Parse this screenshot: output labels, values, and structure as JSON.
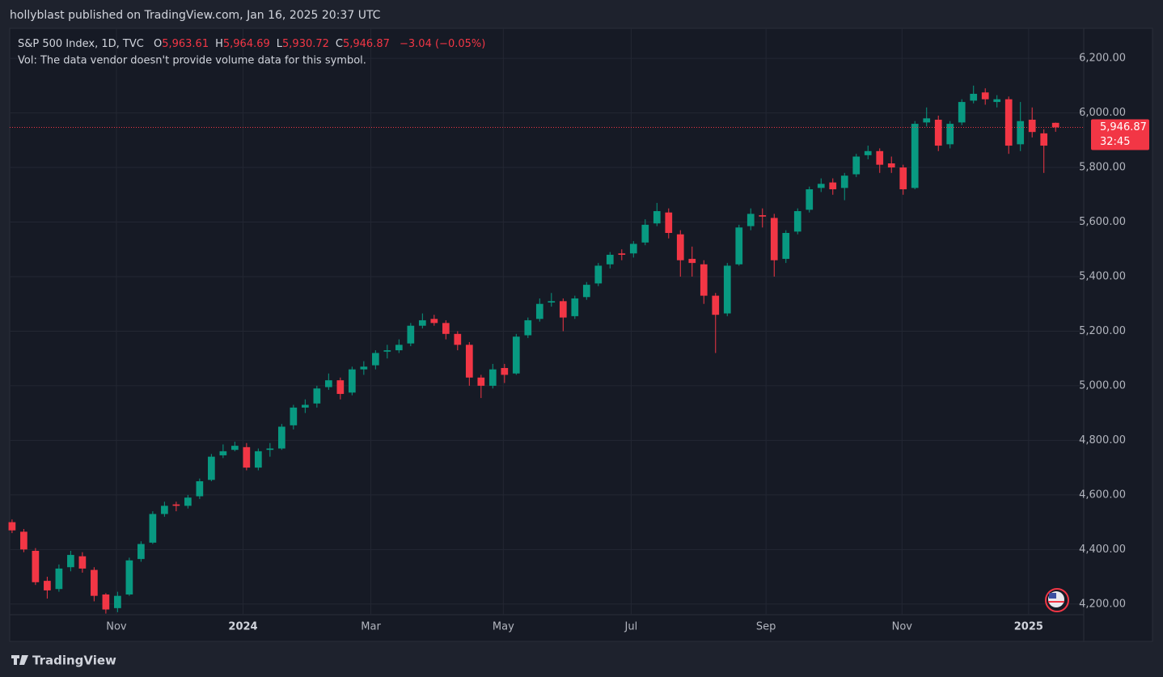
{
  "header": {
    "published": "hollyblast published on TradingView.com, Jan 16, 2025 20:37 UTC"
  },
  "footer": {
    "brand": "TradingView"
  },
  "chart_data": {
    "type": "candlestick",
    "symbol": "S&P 500 Index, 1D, TVC",
    "ohlc_legend": [
      {
        "key": "O",
        "value": "5,963.61"
      },
      {
        "key": "H",
        "value": "5,964.69"
      },
      {
        "key": "L",
        "value": "5,930.72"
      },
      {
        "key": "C",
        "value": "5,946.87"
      }
    ],
    "change": "−3.04 (−0.05%)",
    "volume_note": "Vol: The data vendor doesn't provide volume data for this symbol.",
    "last_price_label": "5,946.87",
    "countdown": "32:45",
    "up_color": "#089981",
    "down_color": "#f23645",
    "grid": true,
    "open": [
      4500,
      4465,
      4395,
      4285,
      4255,
      4335,
      4375,
      4325,
      4235,
      4185,
      4235,
      4365,
      4425,
      4530,
      4565,
      4560,
      4595,
      4655,
      4745,
      4765,
      4775,
      4700,
      4765,
      4770,
      4855,
      4920,
      4935,
      4995,
      5020,
      4975,
      5060,
      5075,
      5125,
      5130,
      5155,
      5220,
      5245,
      5230,
      5190,
      5150,
      5030,
      5000,
      5065,
      5045,
      5185,
      5245,
      5305,
      5310,
      5255,
      5325,
      5375,
      5445,
      5485,
      5485,
      5525,
      5595,
      5635,
      5555,
      5465,
      5445,
      5330,
      5265,
      5445,
      5585,
      5625,
      5615,
      5465,
      5565,
      5645,
      5725,
      5745,
      5725,
      5775,
      5845,
      5860,
      5815,
      5800,
      5725,
      5965,
      5975,
      5885,
      5965,
      6045,
      6075,
      6040,
      6050,
      5885,
      5975,
      5925,
      5963.61
    ],
    "high": [
      4510,
      4475,
      4405,
      4300,
      4345,
      4395,
      4390,
      4335,
      4240,
      4245,
      4370,
      4430,
      4540,
      4575,
      4575,
      4600,
      4660,
      4750,
      4785,
      4795,
      4790,
      4770,
      4790,
      4860,
      4930,
      4950,
      5000,
      5045,
      5030,
      5070,
      5090,
      5130,
      5150,
      5170,
      5230,
      5265,
      5260,
      5240,
      5200,
      5160,
      5040,
      5080,
      5080,
      5190,
      5250,
      5320,
      5340,
      5320,
      5330,
      5380,
      5450,
      5490,
      5500,
      5530,
      5610,
      5670,
      5650,
      5570,
      5510,
      5460,
      5340,
      5450,
      5590,
      5650,
      5650,
      5630,
      5570,
      5650,
      5730,
      5760,
      5760,
      5780,
      5850,
      5880,
      5870,
      5840,
      5810,
      5970,
      6020,
      5990,
      5970,
      6050,
      6100,
      6090,
      6065,
      6060,
      6040,
      6020,
      5940,
      5964.69
    ],
    "low": [
      4460,
      4390,
      4270,
      4220,
      4245,
      4320,
      4315,
      4210,
      4165,
      4170,
      4230,
      4355,
      4420,
      4520,
      4540,
      4550,
      4585,
      4650,
      4735,
      4760,
      4690,
      4690,
      4740,
      4765,
      4840,
      4900,
      4920,
      4985,
      4950,
      4965,
      5040,
      5060,
      5100,
      5120,
      5145,
      5210,
      5220,
      5170,
      5130,
      5000,
      4955,
      4990,
      5010,
      5040,
      5175,
      5235,
      5290,
      5200,
      5245,
      5315,
      5365,
      5430,
      5460,
      5470,
      5515,
      5585,
      5540,
      5400,
      5400,
      5300,
      5120,
      5255,
      5440,
      5570,
      5580,
      5400,
      5450,
      5555,
      5635,
      5710,
      5700,
      5680,
      5765,
      5830,
      5780,
      5780,
      5700,
      5720,
      5950,
      5860,
      5870,
      5955,
      6035,
      6030,
      6020,
      5850,
      5860,
      5910,
      5780,
      5930.72
    ],
    "close": [
      4470,
      4400,
      4280,
      4250,
      4330,
      4380,
      4330,
      4230,
      4180,
      4230,
      4360,
      4420,
      4530,
      4560,
      4560,
      4590,
      4650,
      4740,
      4760,
      4780,
      4700,
      4760,
      4770,
      4850,
      4920,
      4930,
      4990,
      5020,
      4970,
      5060,
      5070,
      5120,
      5130,
      5150,
      5220,
      5240,
      5230,
      5190,
      5150,
      5030,
      5000,
      5060,
      5040,
      5180,
      5240,
      5300,
      5310,
      5250,
      5320,
      5370,
      5440,
      5480,
      5480,
      5520,
      5590,
      5640,
      5560,
      5460,
      5450,
      5330,
      5260,
      5440,
      5580,
      5630,
      5620,
      5460,
      5560,
      5640,
      5720,
      5740,
      5720,
      5770,
      5840,
      5860,
      5810,
      5800,
      5720,
      5960,
      5980,
      5880,
      5960,
      6040,
      6070,
      6050,
      6050,
      5880,
      5970,
      5930,
      5880,
      5946.87
    ],
    "xlim": [
      -0.2,
      91.4
    ],
    "xticks": [
      {
        "value": 8.9,
        "label": "Nov"
      },
      {
        "value": 19.7,
        "label": "2024"
      },
      {
        "value": 30.6,
        "label": "Mar"
      },
      {
        "value": 41.9,
        "label": "May"
      },
      {
        "value": 52.8,
        "label": "Jul"
      },
      {
        "value": 64.3,
        "label": "Sep"
      },
      {
        "value": 75.9,
        "label": "Nov"
      },
      {
        "value": 86.7,
        "label": "2025"
      }
    ],
    "ylim": [
      4063,
      6310
    ],
    "yticks": [
      {
        "value": 4200,
        "label": "4,200.00"
      },
      {
        "value": 4400,
        "label": "4,400.00"
      },
      {
        "value": 4600,
        "label": "4,600.00"
      },
      {
        "value": 4800,
        "label": "4,800.00"
      },
      {
        "value": 5000,
        "label": "5,000.00"
      },
      {
        "value": 5200,
        "label": "5,200.00"
      },
      {
        "value": 5400,
        "label": "5,400.00"
      },
      {
        "value": 5600,
        "label": "5,600.00"
      },
      {
        "value": 5800,
        "label": "5,800.00"
      },
      {
        "value": 6000,
        "label": "6,000.00"
      },
      {
        "value": 6200,
        "label": "6,200.00"
      }
    ]
  }
}
